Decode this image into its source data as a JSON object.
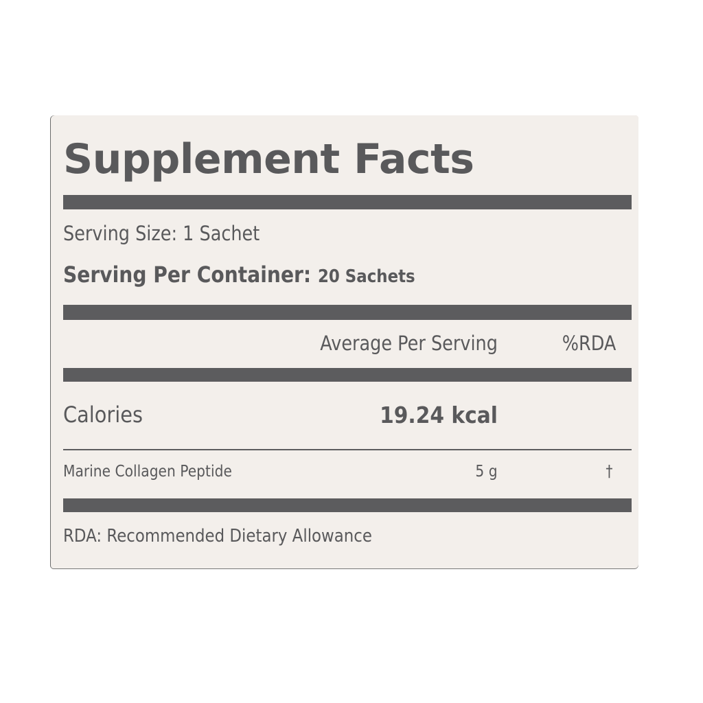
{
  "label": {
    "title": "Supplement Facts",
    "serving_size": "Serving Size: 1 Sachet",
    "servings_per_container_label": "Serving Per Container:",
    "servings_per_container_value": "20 Sachets",
    "columns": {
      "amount": "Average Per Serving",
      "rda": "%RDA"
    },
    "calories": {
      "name": "Calories",
      "value": "19.24 kcal"
    },
    "ingredients": [
      {
        "name": "Marine Collagen Peptide",
        "amount": "5 g",
        "rda": "†"
      }
    ],
    "footnote": "RDA: Recommended Dietary Allowance"
  },
  "colors": {
    "background": "#f3efeb",
    "ink": "#59595b"
  }
}
